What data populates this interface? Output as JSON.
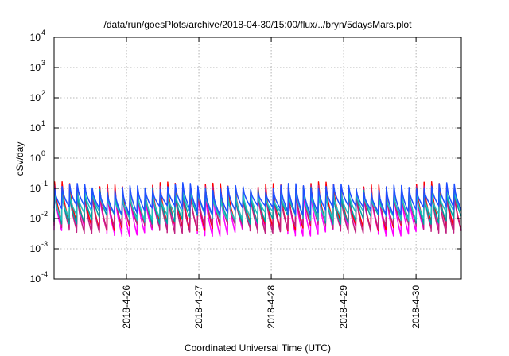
{
  "chart_data": {
    "type": "line",
    "title": "/data/run/goesPlots/archive/2018-04-30/15:00/flux/../bryn/5daysMars.plot",
    "xlabel": "Coordinated Universal Time (UTC)",
    "ylabel": "cSv/day",
    "yscale": "log",
    "ylim": [
      0.0001,
      10000
    ],
    "yticks": [
      {
        "base": "10",
        "exp": "-4",
        "value": 0.0001
      },
      {
        "base": "10",
        "exp": "-3",
        "value": 0.001
      },
      {
        "base": "10",
        "exp": "-2",
        "value": 0.01
      },
      {
        "base": "10",
        "exp": "-1",
        "value": 0.1
      },
      {
        "base": "10",
        "exp": "0",
        "value": 1
      },
      {
        "base": "10",
        "exp": "1",
        "value": 10
      },
      {
        "base": "10",
        "exp": "2",
        "value": 100
      },
      {
        "base": "10",
        "exp": "3",
        "value": 1000
      },
      {
        "base": "10",
        "exp": "4",
        "value": 10000
      }
    ],
    "xlim": [
      "2018-04-25T00:00",
      "2018-04-30T15:00"
    ],
    "xticks": [
      {
        "label": "2018-4-26",
        "date": "2018-04-26T00:00"
      },
      {
        "label": "2018-4-27",
        "date": "2018-04-27T00:00"
      },
      {
        "label": "2018-4-28",
        "date": "2018-04-28T00:00"
      },
      {
        "label": "2018-4-29",
        "date": "2018-04-29T00:00"
      },
      {
        "label": "2018-4-30",
        "date": "2018-04-30T00:00"
      }
    ],
    "grid": true,
    "sawtooth_period_hours": 2.5,
    "series": [
      {
        "color": "#ff00ff",
        "peak": 0.1,
        "trough": 0.004
      },
      {
        "color": "#ff0000",
        "peak": 0.12,
        "trough": 0.006
      },
      {
        "color": "#c02080",
        "peak": 0.09,
        "trough": 0.005
      },
      {
        "color": "#00a0a0",
        "peak": 0.08,
        "trough": 0.01
      },
      {
        "color": "#20c0c0",
        "peak": 0.07,
        "trough": 0.013
      },
      {
        "color": "#1f4fff",
        "peak": 0.11,
        "trough": 0.02
      }
    ]
  }
}
